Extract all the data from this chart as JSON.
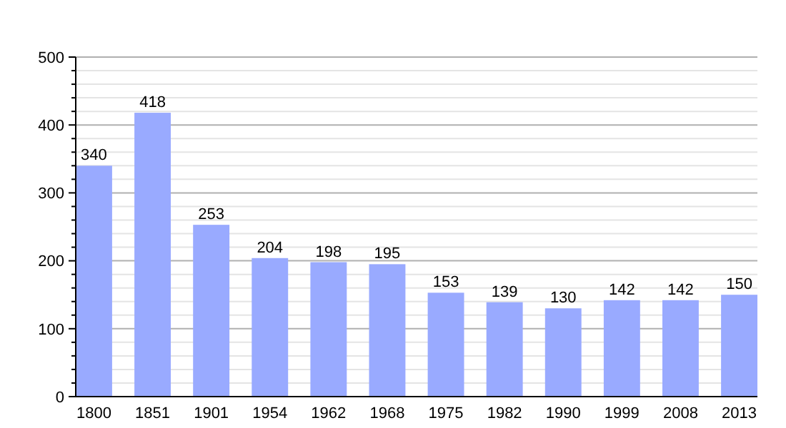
{
  "chart_data": {
    "type": "bar",
    "categories": [
      "1800",
      "1851",
      "1901",
      "1954",
      "1962",
      "1968",
      "1975",
      "1982",
      "1990",
      "1999",
      "2008",
      "2013"
    ],
    "values": [
      340,
      418,
      253,
      204,
      198,
      195,
      153,
      139,
      130,
      142,
      142,
      150
    ],
    "color": "#99aaff",
    "ylim": [
      0,
      500
    ],
    "yticks": [
      0,
      {
        "value": 20,
        "label": null
      },
      {
        "value": 40,
        "label": null
      },
      {
        "value": 60,
        "label": null
      },
      {
        "value": 80,
        "label": null
      },
      100,
      {
        "value": 120,
        "label": null
      },
      {
        "value": 140,
        "label": null
      },
      {
        "value": 160,
        "label": null
      },
      {
        "value": 180,
        "label": null
      },
      200,
      {
        "value": 220,
        "label": null
      },
      {
        "value": 240,
        "label": null
      },
      {
        "value": 260,
        "label": null
      },
      {
        "value": 280,
        "label": null
      },
      300,
      {
        "value": 320,
        "label": null
      },
      {
        "value": 340,
        "label": null
      },
      {
        "value": 360,
        "label": null
      },
      {
        "value": 380,
        "label": null
      },
      400,
      {
        "value": 420,
        "label": null
      },
      {
        "value": 440,
        "label": null
      },
      {
        "value": 460,
        "label": null
      },
      {
        "value": 480,
        "label": null
      },
      500
    ],
    "grid": true,
    "data_labels": true
  }
}
